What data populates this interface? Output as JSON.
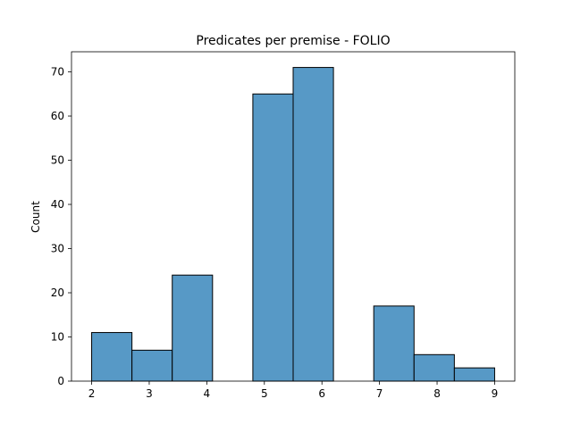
{
  "chart_data": {
    "type": "bar",
    "title": "Predicates per premise - FOLIO",
    "xlabel": "",
    "ylabel": "Count",
    "xlim": [
      1.65,
      9.35
    ],
    "ylim": [
      0,
      74.55
    ],
    "x_ticks": [
      2,
      3,
      4,
      5,
      6,
      7,
      8,
      9
    ],
    "y_ticks": [
      0,
      10,
      20,
      30,
      40,
      50,
      60,
      70
    ],
    "bins": [
      {
        "start": 2.0,
        "end": 2.7,
        "count": 11
      },
      {
        "start": 2.7,
        "end": 3.4,
        "count": 7
      },
      {
        "start": 3.4,
        "end": 4.1,
        "count": 24
      },
      {
        "start": 4.1,
        "end": 4.8,
        "count": 0
      },
      {
        "start": 4.8,
        "end": 5.5,
        "count": 65
      },
      {
        "start": 5.5,
        "end": 6.2,
        "count": 71
      },
      {
        "start": 6.2,
        "end": 6.9,
        "count": 0
      },
      {
        "start": 6.9,
        "end": 7.6,
        "count": 17
      },
      {
        "start": 7.6,
        "end": 8.3,
        "count": 6
      },
      {
        "start": 8.3,
        "end": 9.0,
        "count": 3
      }
    ],
    "grid": false,
    "colors": {
      "bar_fill": "#5799c6",
      "bar_edge": "#000000",
      "axis": "#000000"
    }
  }
}
